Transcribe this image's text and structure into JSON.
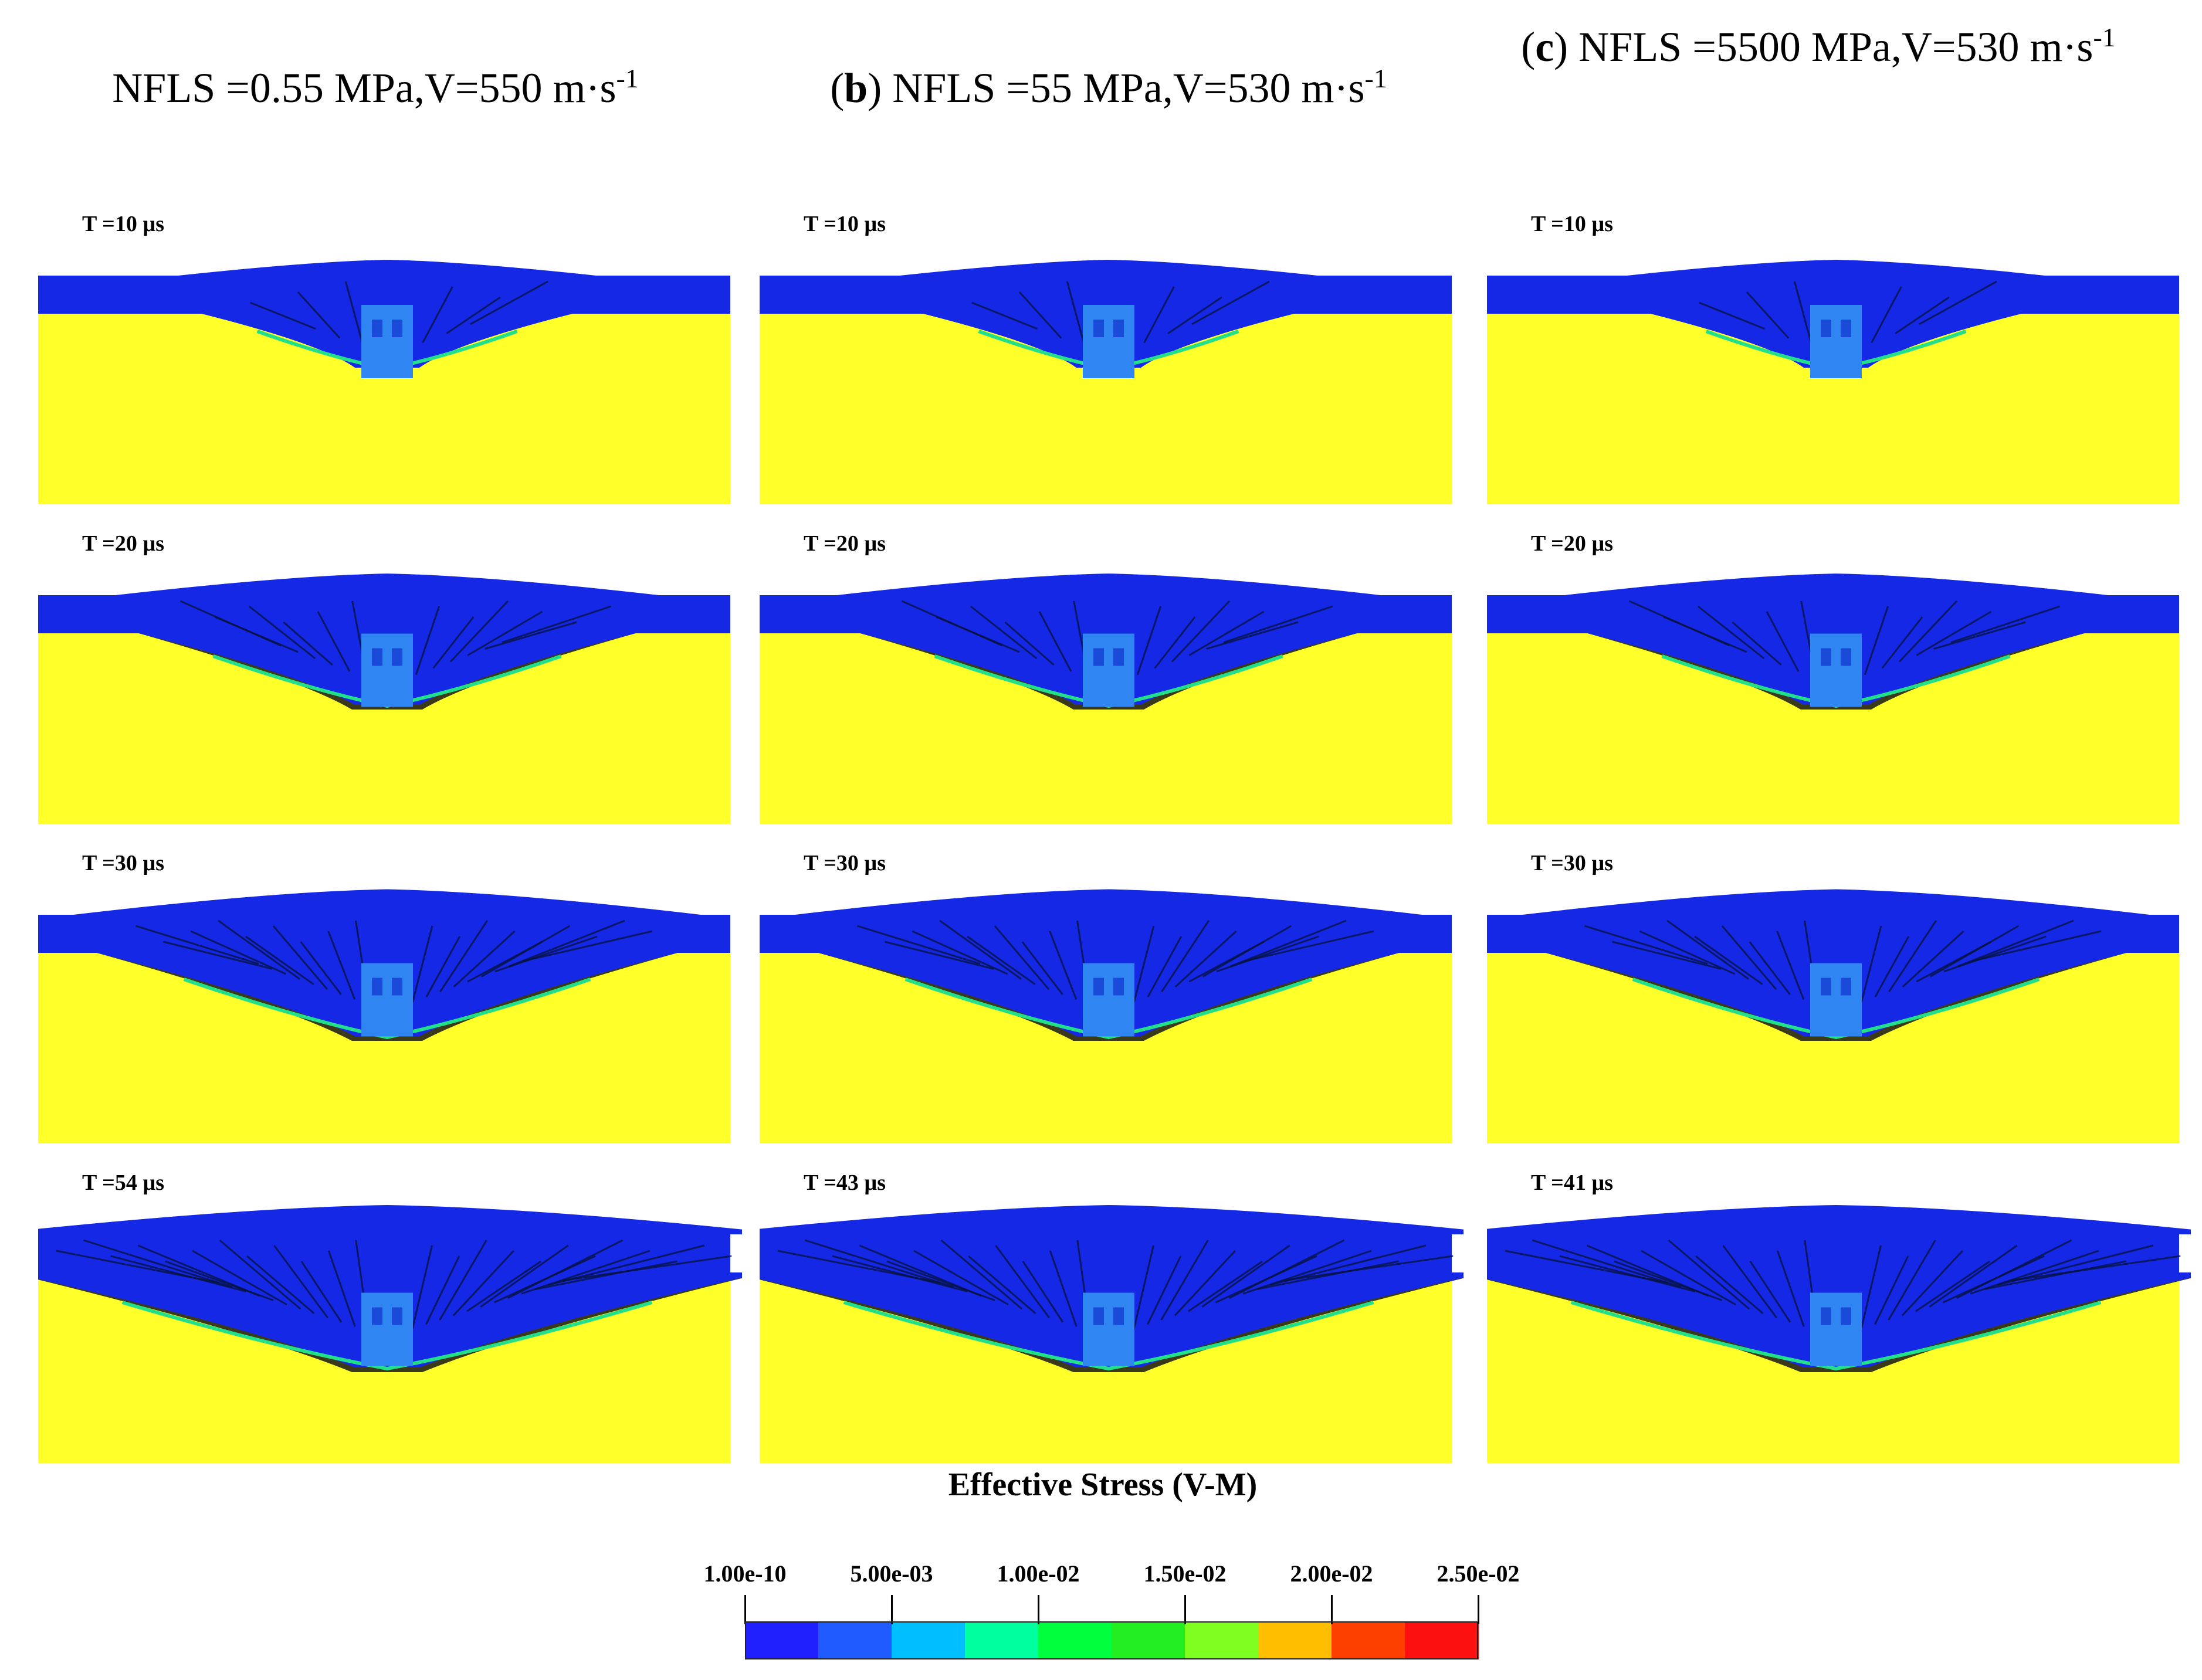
{
  "columns": [
    {
      "prefix": "",
      "tag": "",
      "title": "NFLS =0.55 MPa,V=550 m·s",
      "sup": "-1"
    },
    {
      "prefix": "(",
      "tag": "b",
      "title": ") NFLS =55 MPa,V=530 m·s",
      "sup": "-1"
    },
    {
      "prefix": "(",
      "tag": "c",
      "title": ") NFLS =5500 MPa,V=530 m·s",
      "sup": "-1"
    }
  ],
  "time_labels": [
    [
      "T =10 µs",
      "T =20 µs",
      "T =30 µs",
      "T =54 µs"
    ],
    [
      "T =10 µs",
      "T =20 µs",
      "T =30 µs",
      "T =43 µs"
    ],
    [
      "T =10 µs",
      "T =20 µs",
      "T =30 µs",
      "T =41 µs"
    ]
  ],
  "legend": {
    "title": "Effective Stress (V-M)",
    "ticks": [
      "1.00e-10",
      "5.00e-03",
      "1.00e-02",
      "1.50e-02",
      "2.00e-02",
      "2.50e-02"
    ],
    "colors": [
      "#1f1fff",
      "#1f5bff",
      "#00bfff",
      "#00ff9f",
      "#00ff3f",
      "#22ee22",
      "#7fff1f",
      "#ffbf00",
      "#ff3f00",
      "#ff1010"
    ]
  },
  "colors": {
    "target": "#ffff2a",
    "plate": "#1428e6",
    "projectile": "#2f86f2",
    "crack": "#06123a",
    "edge": "#22e08a"
  }
}
